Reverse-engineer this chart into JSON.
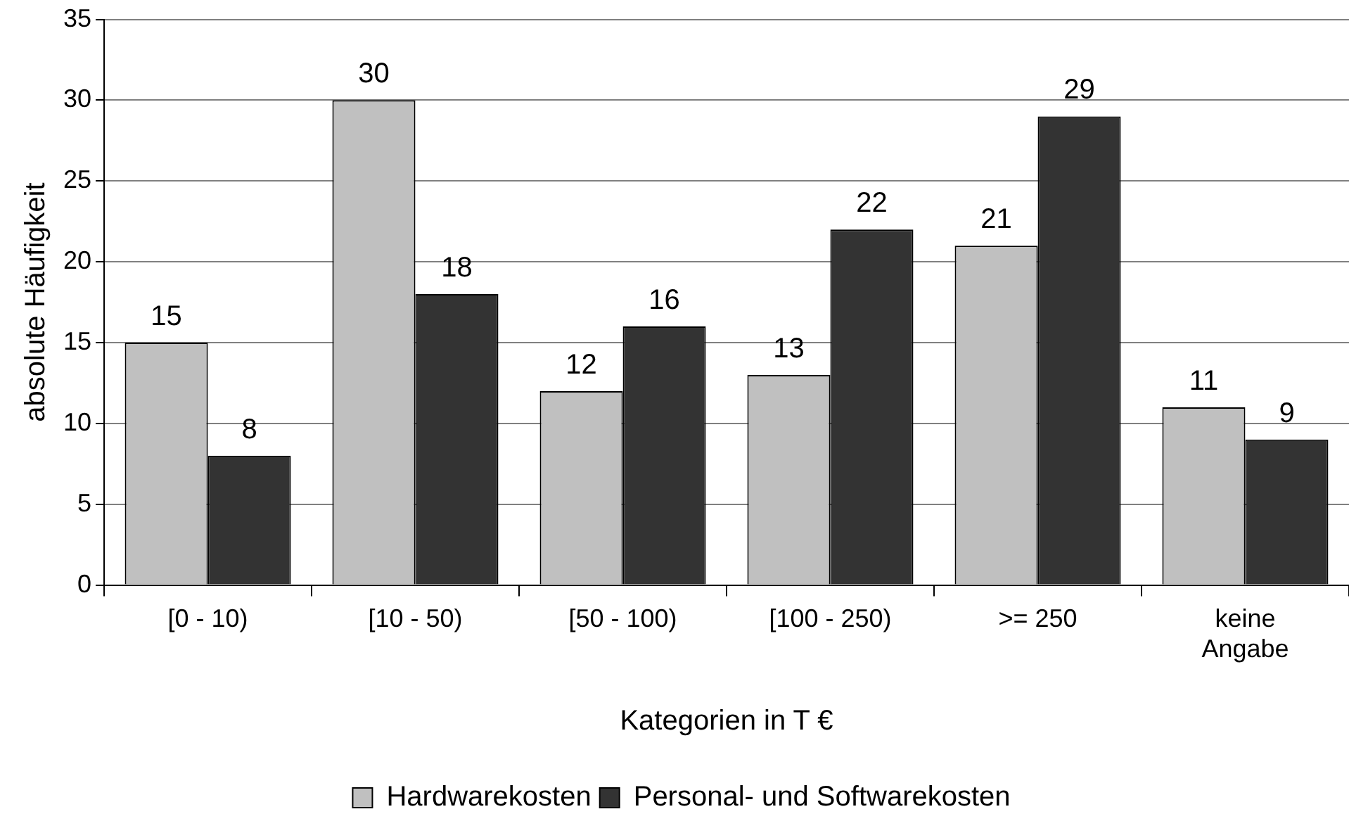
{
  "chart_data": {
    "type": "bar",
    "xlabel": "Kategorien in T €",
    "ylabel": "absolute Häufigkeit",
    "categories": [
      "[0 - 10)",
      "[10 - 50)",
      "[50 - 100)",
      "[100 - 250)",
      ">= 250",
      "keine Angabe"
    ],
    "series": [
      {
        "name": "Hardwarekosten",
        "color": "#c0c0c0",
        "values": [
          15,
          30,
          12,
          13,
          21,
          11
        ]
      },
      {
        "name": "Personal- und Softwarekosten",
        "color": "#333333",
        "values": [
          8,
          18,
          16,
          22,
          29,
          9
        ]
      }
    ],
    "ylim": [
      0,
      35
    ],
    "yticks": [
      0,
      5,
      10,
      15,
      20,
      25,
      30,
      35
    ],
    "grid": "y",
    "legend": "bottom",
    "data_labels": true
  }
}
